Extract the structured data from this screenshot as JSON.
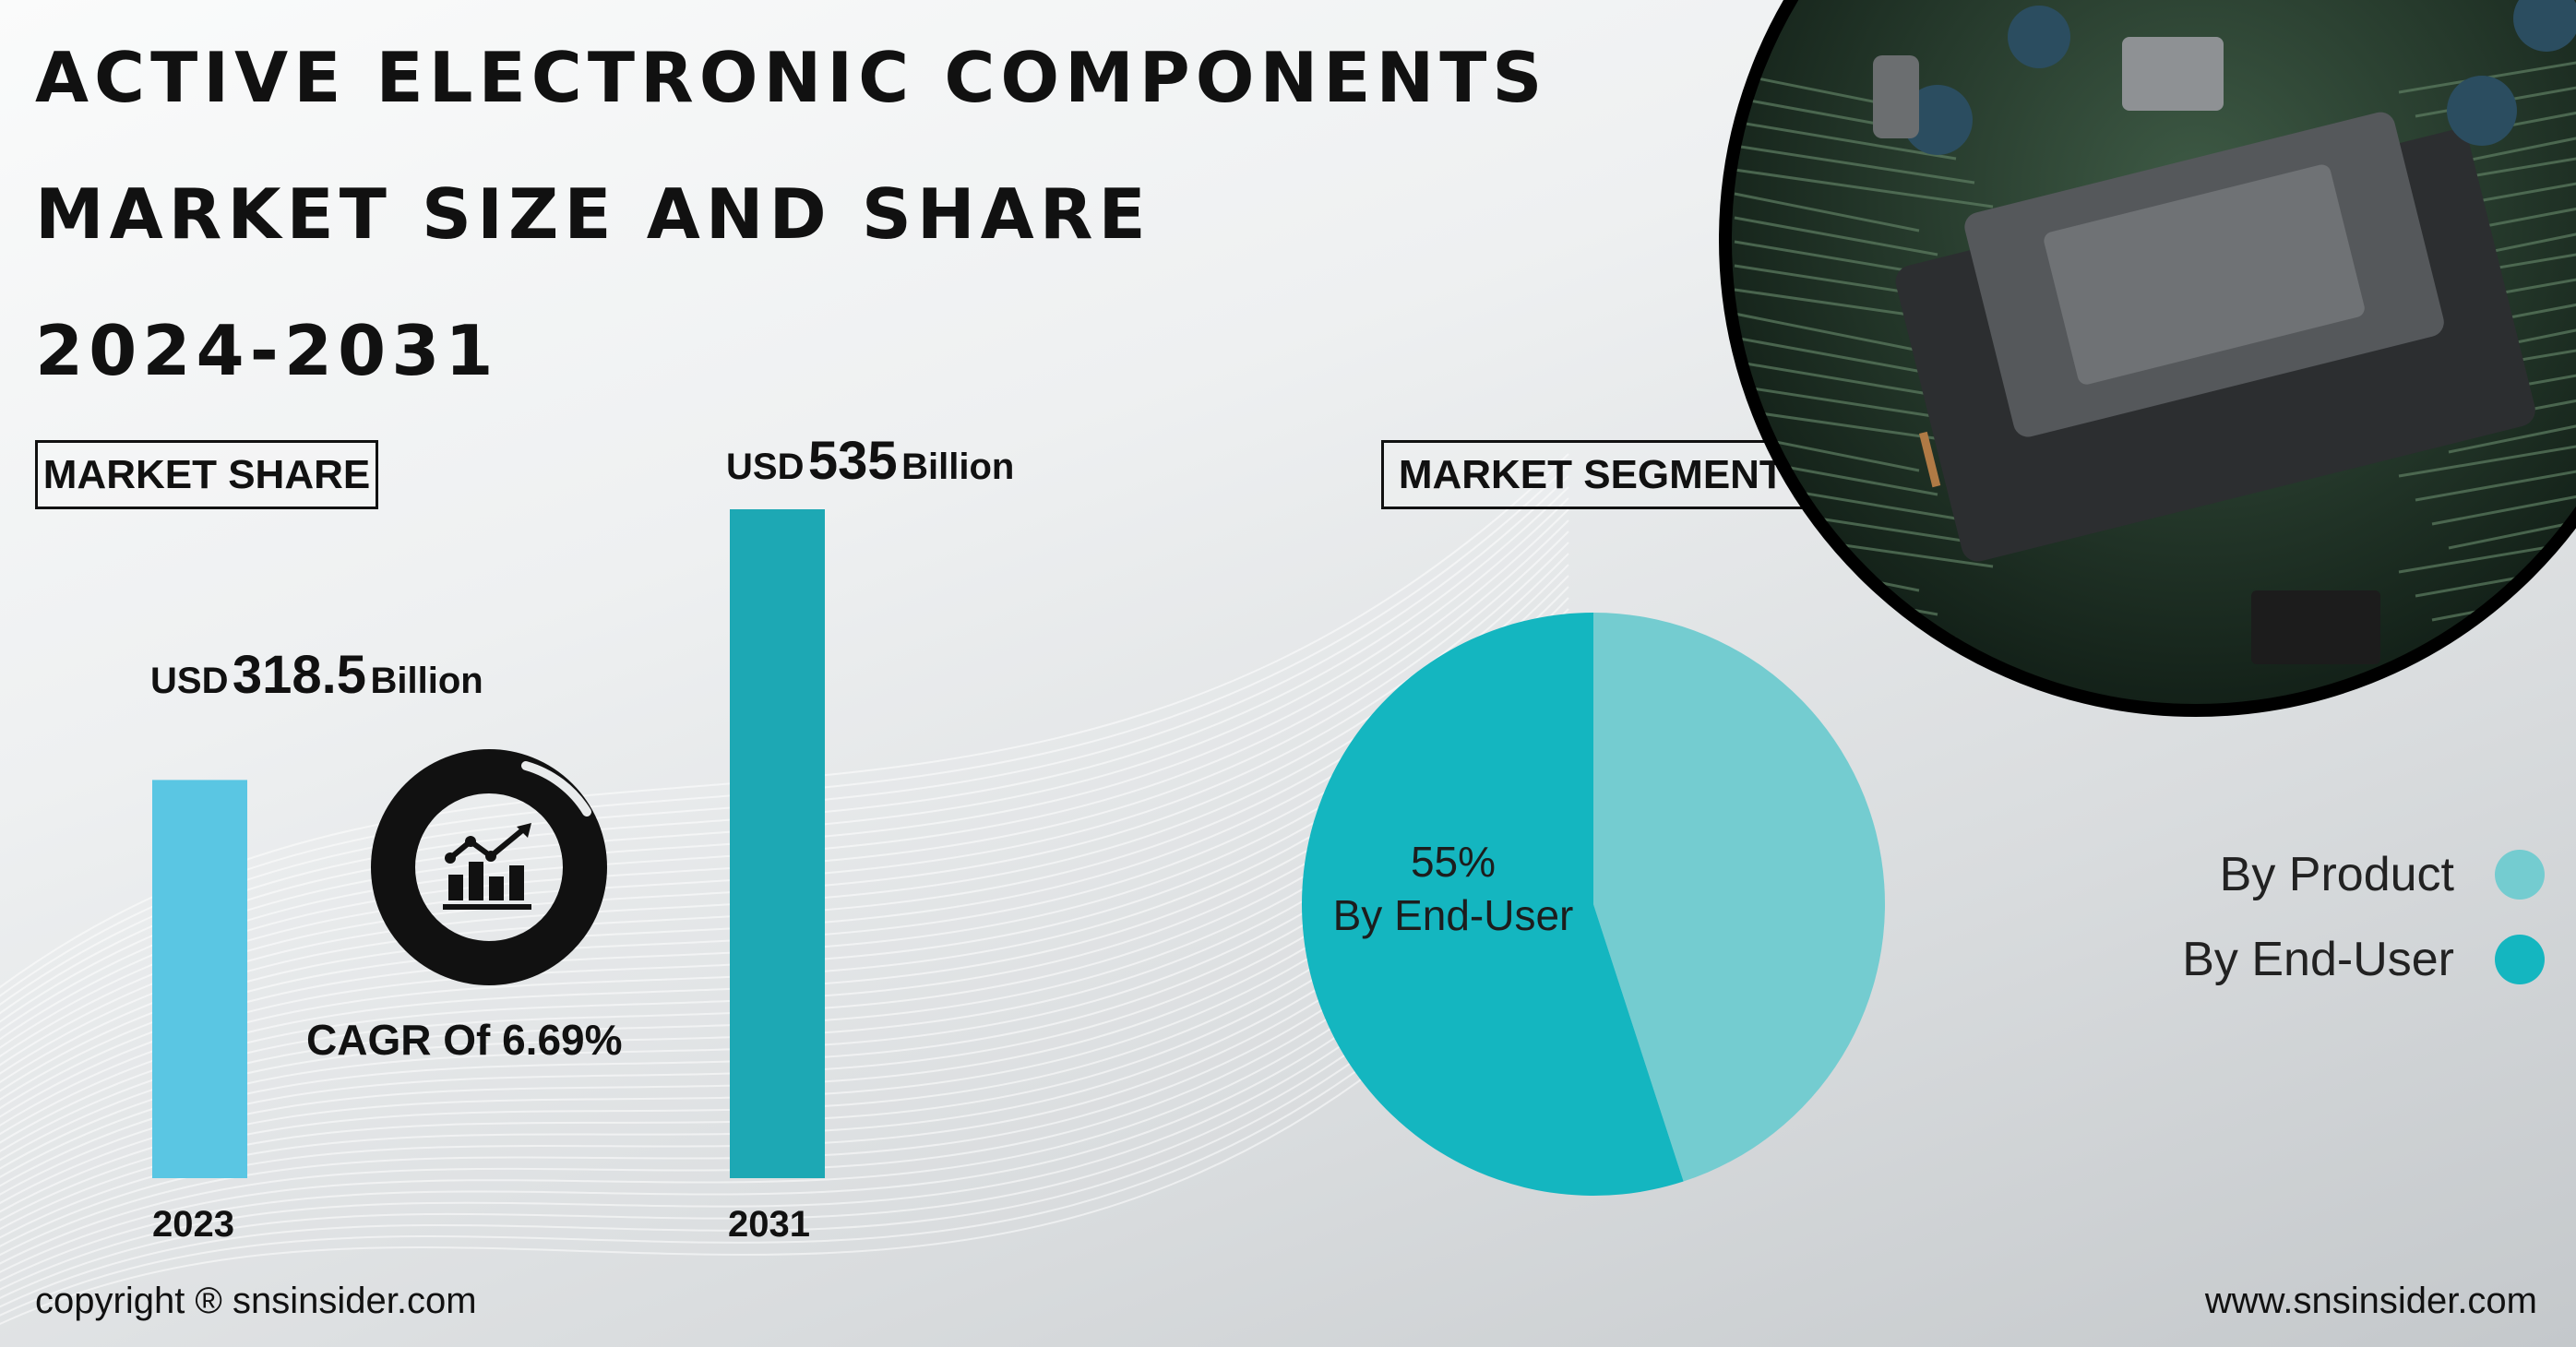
{
  "title": {
    "line1": "ACTIVE ELECTRONIC COMPONENTS",
    "line2": "MARKET SIZE AND SHARE",
    "line3": "2024-2031"
  },
  "market_share_label": "MARKET SHARE",
  "market_segments_label": "MARKET SEGMENTS",
  "cagr_text": "CAGR Of 6.69%",
  "footer": {
    "copyright": "copyright ® snsinsider.com",
    "website": "www.snsinsider.com"
  },
  "icons": [
    "growth-chart-icon",
    "circuit-board-image"
  ],
  "colors": {
    "bar_2023": "#5ac6e3",
    "bar_2031": "#1da8b4",
    "by_product": "#74ccd0",
    "by_end_user": "#14b6c0"
  },
  "chart_data": [
    {
      "type": "bar",
      "categories": [
        "2023",
        "2031"
      ],
      "values": [
        318.5,
        535
      ],
      "value_labels": [
        {
          "prefix": "USD",
          "value": "318.5",
          "suffix": "Billion"
        },
        {
          "prefix": "USD",
          "value": "535",
          "suffix": "Billion"
        }
      ],
      "unit": "USD Billion",
      "ylim": [
        0,
        535
      ]
    },
    {
      "type": "pie",
      "labels": [
        "By Product",
        "By End-User"
      ],
      "values": [
        45,
        55
      ],
      "slice_label": {
        "percent": "55%",
        "name": "By End-User"
      },
      "legend_position": "right"
    }
  ]
}
